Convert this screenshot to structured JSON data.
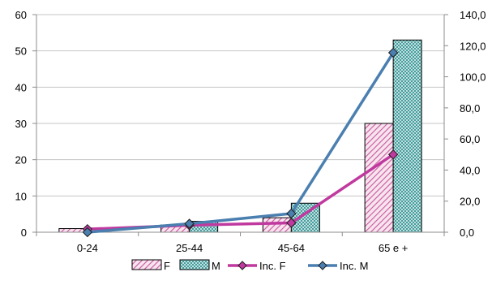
{
  "chart_data": {
    "type": "bar",
    "categories": [
      "0-24",
      "25-44",
      "45-64",
      "65 e +"
    ],
    "series": [
      {
        "name": "F",
        "kind": "bar",
        "axis": "left",
        "values": [
          1,
          2,
          4,
          30
        ],
        "color": "#c8589c",
        "pattern": "diagonal-hatch"
      },
      {
        "name": "M",
        "kind": "bar",
        "axis": "left",
        "values": [
          0,
          3,
          8,
          53
        ],
        "color": "#2f8f8f",
        "pattern": "crosshatch"
      },
      {
        "name": "Inc. F",
        "kind": "line",
        "axis": "right",
        "values": [
          2.0,
          4.5,
          6.0,
          50.0
        ],
        "color": "#c0399f",
        "marker": "diamond"
      },
      {
        "name": "Inc. M",
        "kind": "line",
        "axis": "right",
        "values": [
          0.0,
          5.5,
          12.0,
          115.5
        ],
        "color": "#4a7fb0",
        "marker": "diamond"
      }
    ],
    "y_left": {
      "ylim": [
        0,
        60
      ],
      "ticks": [
        "0",
        "10",
        "20",
        "30",
        "40",
        "50",
        "60"
      ]
    },
    "y_right": {
      "ylim": [
        0,
        140
      ],
      "ticks": [
        "0,0",
        "20,0",
        "40,0",
        "60,0",
        "80,0",
        "100,0",
        "120,0",
        "140,0"
      ]
    },
    "grid": true,
    "legend_position": "bottom"
  }
}
